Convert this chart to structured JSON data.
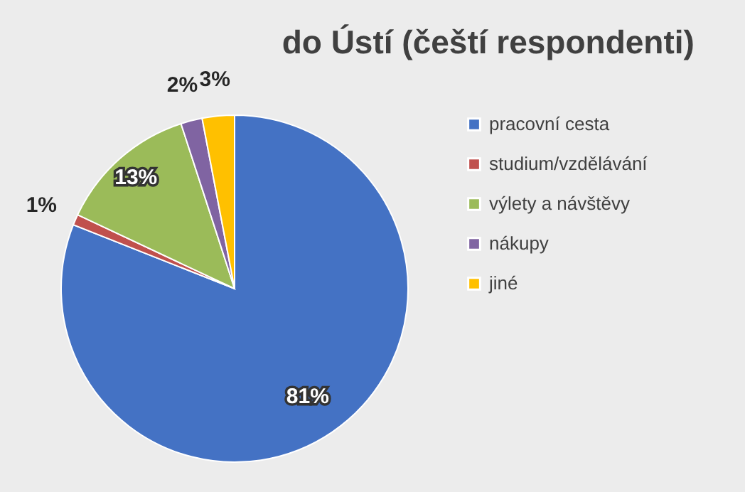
{
  "chart_data": {
    "type": "pie",
    "title": "do Ústí (čeští respondenti)",
    "categories": [
      "pracovní cesta",
      "studium/vzdělávání",
      "výlety a návštěvy",
      "nákupy",
      "jiné"
    ],
    "values": [
      81,
      1,
      13,
      2,
      3
    ],
    "value_labels": [
      "81%",
      "1%",
      "13%",
      "2%",
      "3%"
    ],
    "colors": [
      "#4472c4",
      "#c0504d",
      "#9bbb59",
      "#8064a2",
      "#ffc000"
    ],
    "legend": "right"
  }
}
